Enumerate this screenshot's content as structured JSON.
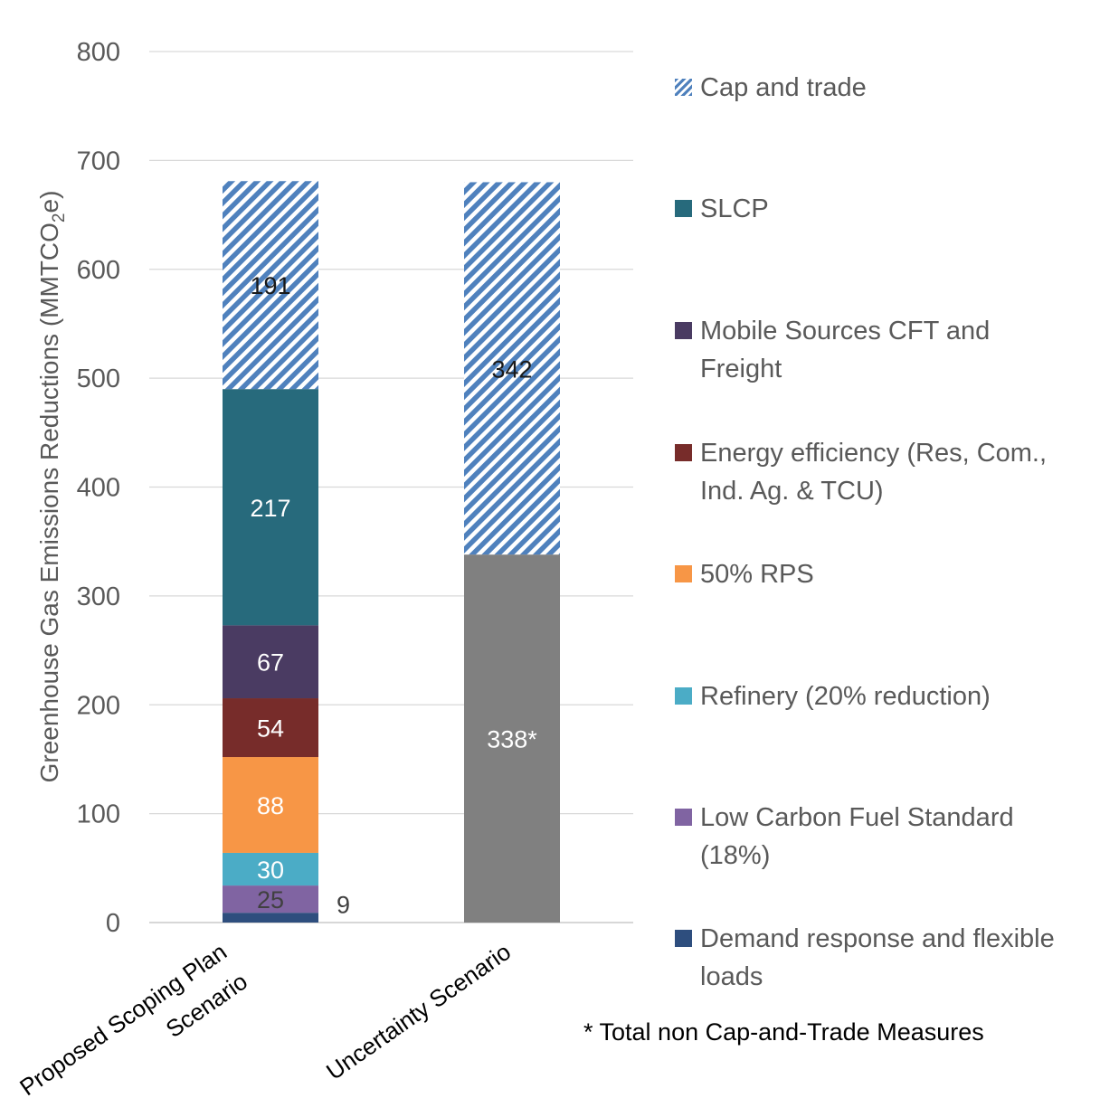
{
  "chart_data": {
    "type": "bar",
    "stacked": true,
    "ylabel_main": "Greenhouse Gas Emissions Reductions",
    "ylabel_unit_prefix": "(MMTCO",
    "ylabel_unit_sub": "2",
    "ylabel_unit_suffix": "e)",
    "ylim": [
      0,
      800
    ],
    "yticks": [
      0,
      100,
      200,
      300,
      400,
      500,
      600,
      700,
      800
    ],
    "grid": true,
    "legend_position": "right",
    "categories": [
      {
        "label_lines": [
          "Proposed Scoping Plan",
          "Scenario"
        ]
      },
      {
        "label_lines": [
          "Uncertainty Scenario"
        ]
      }
    ],
    "series": [
      {
        "key": "demand",
        "name": "Demand response and flexible loads",
        "name_lines": [
          "Demand response and flexible",
          "loads"
        ],
        "color": "#2e4e7e",
        "values": [
          9,
          null
        ],
        "labels": [
          "9",
          ""
        ],
        "label_color": "#404040",
        "label_outside": true
      },
      {
        "key": "lcfs",
        "name": "Low Carbon Fuel Standard (18%)",
        "name_lines": [
          "Low Carbon Fuel Standard",
          "(18%)"
        ],
        "color": "#8064a2",
        "values": [
          25,
          null
        ],
        "labels": [
          "25",
          ""
        ],
        "label_color": "#404040"
      },
      {
        "key": "refinery",
        "name": "Refinery (20%  reduction)",
        "name_lines": [
          "Refinery (20%  reduction)"
        ],
        "color": "#4bacc6",
        "values": [
          30,
          null
        ],
        "labels": [
          "30",
          ""
        ],
        "label_color": "#ffffff"
      },
      {
        "key": "rps",
        "name": "50% RPS",
        "name_lines": [
          "50% RPS"
        ],
        "color": "#f79646",
        "values": [
          88,
          null
        ],
        "labels": [
          "88",
          ""
        ],
        "label_color": "#ffffff"
      },
      {
        "key": "ee",
        "name": "Energy efficiency (Res, Com., Ind. Ag. & TCU)",
        "name_lines": [
          "Energy efficiency (Res, Com.,",
          "Ind. Ag. & TCU)"
        ],
        "color": "#772c2a",
        "values": [
          54,
          null
        ],
        "labels": [
          "54",
          ""
        ],
        "label_color": "#ffffff"
      },
      {
        "key": "mobile",
        "name": "Mobile Sources CFT and Freight",
        "name_lines": [
          "Mobile Sources CFT and",
          "Freight"
        ],
        "color": "#4a3b62",
        "values": [
          67,
          null
        ],
        "labels": [
          "67",
          ""
        ],
        "label_color": "#ffffff"
      },
      {
        "key": "slcp",
        "name": "SLCP",
        "name_lines": [
          "SLCP"
        ],
        "color": "#276a7c",
        "values": [
          217,
          null
        ],
        "labels": [
          "217",
          ""
        ],
        "label_color": "#ffffff"
      },
      {
        "key": "total_non_cap",
        "name": "",
        "color": "#808080",
        "values": [
          null,
          338
        ],
        "labels": [
          "",
          "338*"
        ],
        "label_color": "#ffffff",
        "in_legend": false
      },
      {
        "key": "cap",
        "name": "Cap and trade",
        "name_lines": [
          "Cap and trade"
        ],
        "color": "#4f81bd",
        "pattern": "diagonal-hatch",
        "values": [
          191,
          342
        ],
        "labels": [
          "191",
          "342"
        ],
        "label_color": "#1a1a1a"
      }
    ],
    "legend_order": [
      "cap",
      "slcp",
      "mobile",
      "ee",
      "rps",
      "refinery",
      "lcfs",
      "demand"
    ],
    "footnote": "* Total non Cap-and-Trade Measures"
  }
}
